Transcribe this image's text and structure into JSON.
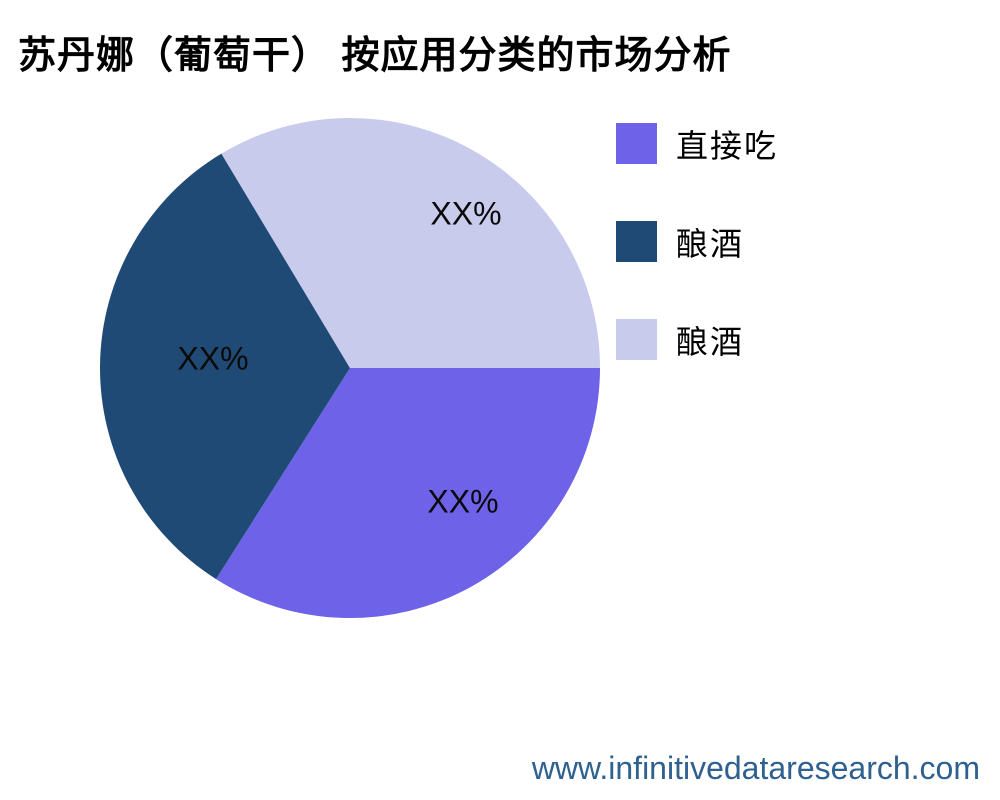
{
  "page": {
    "background": "#ffffff"
  },
  "chart_data": {
    "type": "pie",
    "title": "苏丹娜（葡萄干） 按应用分类的市场分析",
    "values_masked": true,
    "start_angle_deg": 0,
    "direction": "clockwise",
    "legend_position": "right",
    "slices": [
      {
        "label": "直接吃",
        "value_label": "XX%",
        "value_pct": 34.0,
        "color": "#6E62E8"
      },
      {
        "label": "酿酒",
        "value_label": "XX%",
        "value_pct": 32.4,
        "color": "#1F4A75"
      },
      {
        "label": "酿酒",
        "value_label": "XX%",
        "value_pct": 33.6,
        "color": "#C9CBEC"
      }
    ]
  },
  "footer": {
    "url": "www.infinitivedataresearch.com",
    "color": "#2E6090"
  }
}
